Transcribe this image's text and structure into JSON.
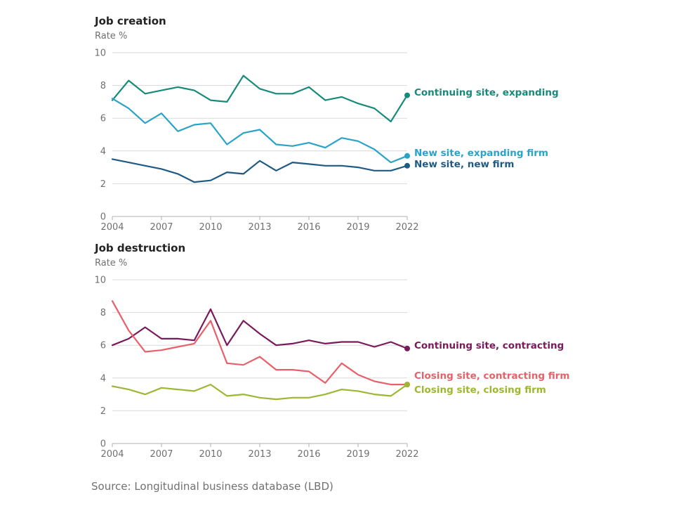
{
  "source": "Source: Longitudinal business database (LBD)",
  "chart_data": [
    {
      "type": "line",
      "title": "Job creation",
      "ylabel": "Rate %",
      "xlabel": "",
      "ylim": [
        0,
        10
      ],
      "yticks": [
        0,
        2,
        4,
        6,
        8,
        10
      ],
      "xticks": [
        2004,
        2007,
        2010,
        2013,
        2016,
        2019,
        2022
      ],
      "grid": true,
      "legend": "direct labels at line ends",
      "x": [
        2004,
        2005,
        2006,
        2007,
        2008,
        2009,
        2010,
        2011,
        2012,
        2013,
        2014,
        2015,
        2016,
        2017,
        2018,
        2019,
        2020,
        2021,
        2022
      ],
      "series": [
        {
          "name": "Continuing site, expanding",
          "color": "#178a7a",
          "values": [
            7.1,
            8.3,
            7.5,
            7.7,
            7.9,
            7.7,
            7.1,
            7.0,
            8.6,
            7.8,
            7.5,
            7.5,
            7.9,
            7.1,
            7.3,
            6.9,
            6.6,
            5.8,
            7.4
          ]
        },
        {
          "name": "New site, expanding firm",
          "color": "#2aa3c8",
          "values": [
            7.2,
            6.6,
            5.7,
            6.3,
            5.2,
            5.6,
            5.7,
            4.4,
            5.1,
            5.3,
            4.4,
            4.3,
            4.5,
            4.2,
            4.8,
            4.6,
            4.1,
            3.3,
            3.7
          ]
        },
        {
          "name": "New site, new firm",
          "color": "#1f5a85",
          "values": [
            3.5,
            3.3,
            3.1,
            2.9,
            2.6,
            2.1,
            2.2,
            2.7,
            2.6,
            3.4,
            2.8,
            3.3,
            3.2,
            3.1,
            3.1,
            3.0,
            2.8,
            2.8,
            3.1
          ]
        }
      ]
    },
    {
      "type": "line",
      "title": "Job destruction",
      "ylabel": "Rate %",
      "xlabel": "",
      "ylim": [
        0,
        10
      ],
      "yticks": [
        0,
        2,
        4,
        6,
        8,
        10
      ],
      "xticks": [
        2004,
        2007,
        2010,
        2013,
        2016,
        2019,
        2022
      ],
      "grid": true,
      "legend": "direct labels at line ends",
      "x": [
        2004,
        2005,
        2006,
        2007,
        2008,
        2009,
        2010,
        2011,
        2012,
        2013,
        2014,
        2015,
        2016,
        2017,
        2018,
        2019,
        2020,
        2021,
        2022
      ],
      "series": [
        {
          "name": "Continuing site, contracting",
          "color": "#7a1a5a",
          "values": [
            6.0,
            6.4,
            7.1,
            6.4,
            6.4,
            6.3,
            8.2,
            6.0,
            7.5,
            6.7,
            6.0,
            6.1,
            6.3,
            6.1,
            6.2,
            6.2,
            5.9,
            6.2,
            5.8
          ]
        },
        {
          "name": "Closing site, contracting firm",
          "color": "#e8606a",
          "values": [
            8.7,
            6.9,
            5.6,
            5.7,
            5.9,
            6.1,
            7.5,
            4.9,
            4.8,
            5.3,
            4.5,
            4.5,
            4.4,
            3.7,
            4.9,
            4.2,
            3.8,
            3.6,
            3.6
          ]
        },
        {
          "name": "Closing site, closing firm",
          "color": "#9cb832",
          "values": [
            3.5,
            3.3,
            3.0,
            3.4,
            3.3,
            3.2,
            3.6,
            2.9,
            3.0,
            2.8,
            2.7,
            2.8,
            2.8,
            3.0,
            3.3,
            3.2,
            3.0,
            2.9,
            3.6
          ]
        }
      ]
    }
  ]
}
